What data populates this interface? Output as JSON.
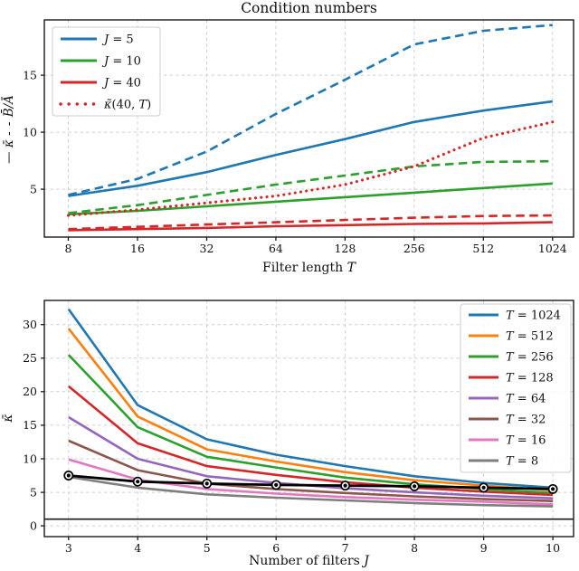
{
  "figure_title": "Condition numbers",
  "colors": {
    "blue": "#1f77b4",
    "orange": "#ff7f0e",
    "green": "#2ca02c",
    "red": "#d62728",
    "purple": "#9467bd",
    "brown": "#8c564b",
    "pink": "#e377c2",
    "gray": "#7f7f7f",
    "black": "#000000",
    "grid": "#cfcfcf",
    "frame": "#1a1a1a"
  },
  "chart_data": [
    {
      "type": "line",
      "key": "condition-numbers",
      "title": "Condition numbers",
      "xlabel": "Filter length T",
      "xlabel_parts": {
        "text": "Filter length ",
        "math": "T"
      },
      "ylabel": "— κ̄   - -  B̄/Ā",
      "ylabel_parts": {
        "p1": "—",
        "p2": " κ̄   ",
        "p3": "- -",
        "p4": " B̄/Ā"
      },
      "x_scale": "log2",
      "x": [
        8,
        16,
        32,
        64,
        128,
        256,
        512,
        1024
      ],
      "x_tick_labels": [
        "8",
        "16",
        "32",
        "64",
        "128",
        "256",
        "512",
        "1024"
      ],
      "y_ticks": [
        5,
        10,
        15
      ],
      "xlim": [
        6.29,
        1264
      ],
      "ylim": [
        0.8,
        19.85
      ],
      "grid": true,
      "legend_position": "upper-left",
      "legend_labels": [
        "J = 5",
        "J = 10",
        "J = 40",
        "κ̃(40, T)"
      ],
      "series": [
        {
          "key": "kappa-J5",
          "name": "J = 5",
          "color": "#1f77b4",
          "style": "solid",
          "legend": true,
          "values": [
            4.4,
            5.3,
            6.5,
            8.0,
            9.4,
            10.9,
            11.9,
            12.7
          ]
        },
        {
          "key": "BA-J5",
          "name": "B̄/Ā (J = 5)",
          "color": "#1f77b4",
          "style": "dashed",
          "legend": false,
          "values": [
            4.5,
            5.9,
            8.3,
            11.6,
            14.6,
            17.7,
            18.9,
            19.4
          ]
        },
        {
          "key": "kappa-J10",
          "name": "J = 10",
          "color": "#2ca02c",
          "style": "solid",
          "legend": true,
          "values": [
            2.8,
            3.1,
            3.5,
            3.9,
            4.3,
            4.7,
            5.1,
            5.5
          ]
        },
        {
          "key": "BA-J10",
          "name": "B̄/Ā (J = 10)",
          "color": "#2ca02c",
          "style": "dashed",
          "legend": false,
          "values": [
            2.9,
            3.6,
            4.5,
            5.4,
            6.2,
            7.0,
            7.4,
            7.45
          ]
        },
        {
          "key": "kappa-J40",
          "name": "J = 40",
          "color": "#d62728",
          "style": "solid",
          "legend": true,
          "values": [
            1.4,
            1.5,
            1.6,
            1.75,
            1.85,
            1.95,
            2.0,
            2.1
          ]
        },
        {
          "key": "BA-J40",
          "name": "B̄/Ā (J = 40)",
          "color": "#d62728",
          "style": "dashed",
          "legend": false,
          "values": [
            1.5,
            1.7,
            1.9,
            2.1,
            2.3,
            2.5,
            2.65,
            2.7
          ]
        },
        {
          "key": "kappa-tilde-40T",
          "name": "κ̃(40, T)",
          "color": "#d62728",
          "style": "dotted",
          "legend": true,
          "values": [
            2.7,
            3.2,
            3.8,
            4.4,
            5.4,
            7.0,
            9.5,
            10.9
          ]
        }
      ]
    },
    {
      "type": "line",
      "key": "kappa-vs-J",
      "title": "",
      "xlabel": "Number of filters J",
      "xlabel_parts": {
        "text": "Number of filters ",
        "math": "J"
      },
      "ylabel": "κ̄",
      "x_scale": "linear",
      "x": [
        3,
        4,
        5,
        6,
        7,
        8,
        9,
        10
      ],
      "x_tick_labels": [
        "3",
        "4",
        "5",
        "6",
        "7",
        "8",
        "9",
        "10"
      ],
      "y_ticks": [
        0,
        5,
        10,
        15,
        20,
        25,
        30
      ],
      "xlim": [
        2.65,
        10.3
      ],
      "ylim": [
        -1.6,
        33.6
      ],
      "grid": true,
      "legend_position": "upper-right",
      "legend_labels": [
        "T = 1024",
        "T = 512",
        "T = 256",
        "T = 128",
        "T = 64",
        "T = 32",
        "T = 16",
        "T = 8"
      ],
      "series": [
        {
          "key": "T1024",
          "name": "T = 1024",
          "color": "#1f77b4",
          "style": "solid",
          "legend": true,
          "values": [
            32.3,
            18.0,
            12.9,
            10.6,
            8.9,
            7.4,
            6.4,
            5.7
          ]
        },
        {
          "key": "T512",
          "name": "T = 512",
          "color": "#ff7f0e",
          "style": "solid",
          "legend": true,
          "values": [
            29.4,
            16.3,
            11.4,
            9.6,
            8.0,
            6.8,
            6.0,
            5.3
          ]
        },
        {
          "key": "T256",
          "name": "T = 256",
          "color": "#2ca02c",
          "style": "solid",
          "legend": true,
          "values": [
            25.5,
            14.7,
            10.3,
            8.7,
            7.2,
            6.2,
            5.5,
            4.9
          ]
        },
        {
          "key": "T128",
          "name": "T = 128",
          "color": "#d62728",
          "style": "solid",
          "legend": true,
          "values": [
            20.8,
            12.3,
            8.9,
            7.6,
            6.5,
            5.7,
            5.1,
            4.6
          ]
        },
        {
          "key": "T64",
          "name": "T = 64",
          "color": "#9467bd",
          "style": "solid",
          "legend": true,
          "values": [
            16.2,
            10.0,
            7.4,
            6.4,
            5.6,
            5.0,
            4.5,
            4.1
          ]
        },
        {
          "key": "T32",
          "name": "T = 32",
          "color": "#8c564b",
          "style": "solid",
          "legend": true,
          "values": [
            12.7,
            8.3,
            6.3,
            5.5,
            4.9,
            4.4,
            4.0,
            3.7
          ]
        },
        {
          "key": "T16",
          "name": "T = 16",
          "color": "#e377c2",
          "style": "solid",
          "legend": true,
          "values": [
            9.9,
            6.9,
            5.5,
            4.8,
            4.3,
            3.9,
            3.6,
            3.2
          ]
        },
        {
          "key": "T8",
          "name": "T = 8",
          "color": "#7f7f7f",
          "style": "solid",
          "legend": true,
          "values": [
            7.3,
            5.7,
            4.7,
            4.2,
            3.8,
            3.4,
            3.1,
            2.9
          ]
        },
        {
          "key": "black-marker-line",
          "name": "(unlabeled black line with markers)",
          "color": "#000000",
          "style": "solid",
          "legend": false,
          "marker": "ring-dot",
          "width": 2.8,
          "values": [
            7.5,
            6.6,
            6.3,
            6.1,
            6.0,
            5.9,
            5.7,
            5.5
          ]
        },
        {
          "key": "reference-1",
          "name": "(horizontal reference line at 1)",
          "color": "#1a1a1a",
          "style": "solid",
          "legend": false,
          "width": 1.6,
          "x": [
            2.65,
            10.3
          ],
          "values": [
            1,
            1
          ]
        }
      ]
    }
  ]
}
